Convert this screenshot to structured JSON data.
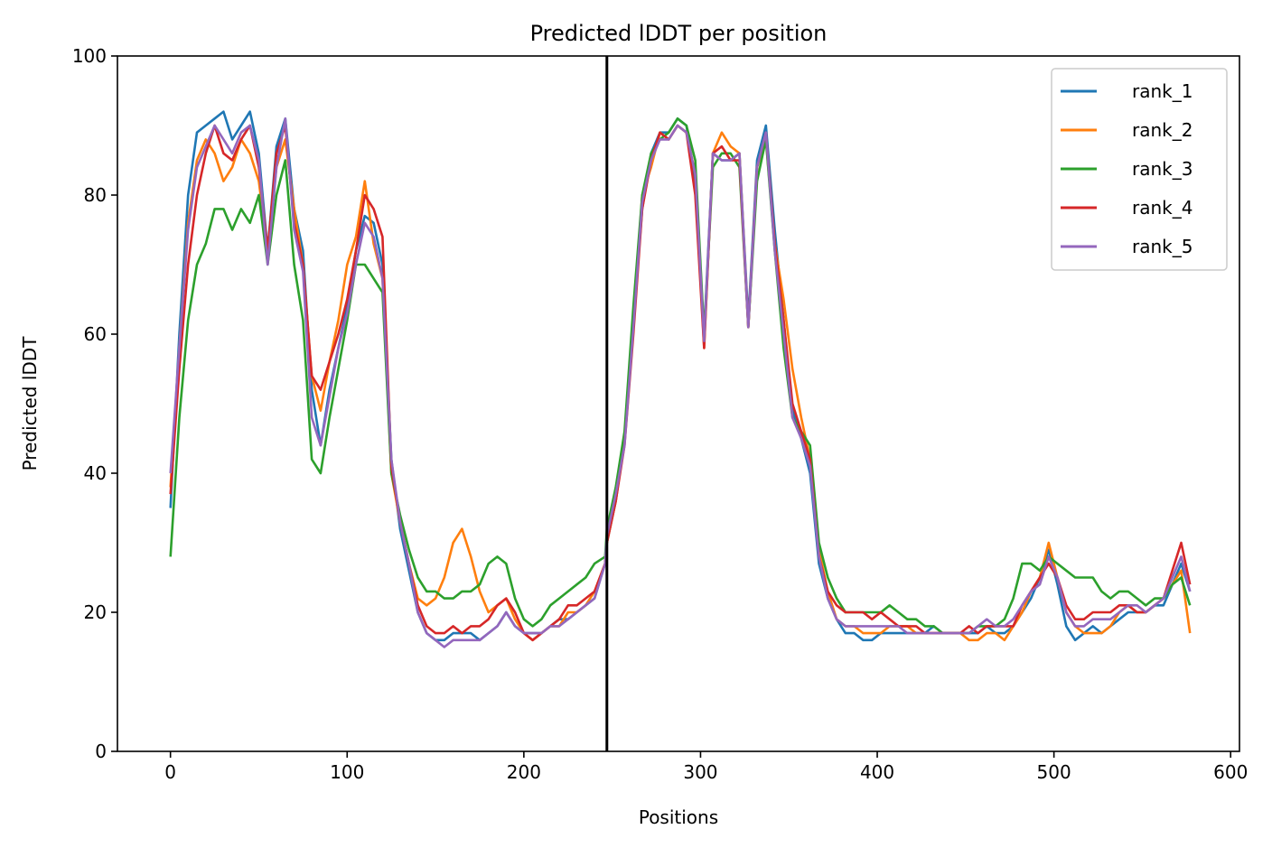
{
  "chart_data": {
    "type": "line",
    "title": "Predicted lDDT per position",
    "xlabel": "Positions",
    "ylabel": "Predicted lDDT",
    "xlim": [
      -30,
      605
    ],
    "ylim": [
      0,
      100
    ],
    "xticks": [
      0,
      100,
      200,
      300,
      400,
      500,
      600
    ],
    "yticks": [
      0,
      20,
      40,
      60,
      80,
      100
    ],
    "grid": false,
    "legend_position": "top-right",
    "chain_break": 247,
    "chain_break_color": "#000000",
    "x": [
      0,
      5,
      10,
      15,
      20,
      25,
      30,
      35,
      40,
      45,
      50,
      55,
      60,
      65,
      70,
      75,
      80,
      85,
      90,
      95,
      100,
      105,
      110,
      115,
      120,
      125,
      130,
      135,
      140,
      145,
      150,
      155,
      160,
      165,
      170,
      175,
      180,
      185,
      190,
      195,
      200,
      205,
      210,
      215,
      220,
      225,
      230,
      235,
      240,
      246,
      247,
      252,
      257,
      262,
      267,
      272,
      277,
      282,
      287,
      292,
      297,
      302,
      307,
      312,
      317,
      322,
      327,
      332,
      337,
      342,
      347,
      352,
      357,
      362,
      367,
      372,
      377,
      382,
      387,
      392,
      397,
      402,
      407,
      412,
      417,
      422,
      427,
      432,
      437,
      442,
      447,
      452,
      457,
      462,
      467,
      472,
      477,
      482,
      487,
      492,
      497,
      502,
      507,
      512,
      517,
      522,
      527,
      532,
      537,
      542,
      547,
      552,
      557,
      562,
      567,
      572,
      577
    ],
    "series": [
      {
        "name": "rank_1",
        "color": "#1f77b4",
        "values": [
          35,
          60,
          80,
          89,
          90,
          91,
          92,
          88,
          90,
          92,
          86,
          72,
          87,
          91,
          78,
          72,
          52,
          44,
          52,
          58,
          64,
          72,
          77,
          76,
          70,
          42,
          32,
          26,
          20,
          17,
          16,
          16,
          17,
          17,
          17,
          16,
          17,
          18,
          20,
          18,
          17,
          17,
          17,
          18,
          19,
          19,
          20,
          21,
          22,
          27,
          30,
          36,
          45,
          62,
          78,
          86,
          89,
          89,
          91,
          90,
          82,
          60,
          86,
          85,
          85,
          86,
          62,
          85,
          90,
          75,
          62,
          49,
          45,
          40,
          27,
          22,
          19,
          17,
          17,
          16,
          16,
          17,
          17,
          17,
          17,
          17,
          17,
          18,
          17,
          17,
          17,
          17,
          17,
          18,
          17,
          17,
          18,
          20,
          22,
          25,
          29,
          24,
          18,
          16,
          17,
          18,
          17,
          18,
          19,
          20,
          20,
          20,
          21,
          21,
          24,
          27,
          23
        ]
      },
      {
        "name": "rank_2",
        "color": "#ff7f0e",
        "values": [
          38,
          58,
          76,
          85,
          88,
          86,
          82,
          84,
          88,
          86,
          82,
          72,
          84,
          88,
          78,
          70,
          54,
          49,
          56,
          62,
          70,
          74,
          82,
          73,
          68,
          40,
          33,
          27,
          22,
          21,
          22,
          25,
          30,
          32,
          28,
          23,
          20,
          21,
          22,
          19,
          17,
          16,
          17,
          18,
          18,
          20,
          20,
          21,
          23,
          27,
          30,
          36,
          45,
          62,
          80,
          84,
          89,
          88,
          90,
          89,
          83,
          58,
          86,
          89,
          87,
          86,
          61,
          84,
          88,
          73,
          65,
          55,
          48,
          42,
          29,
          23,
          19,
          18,
          18,
          17,
          17,
          17,
          18,
          18,
          18,
          17,
          17,
          17,
          17,
          17,
          17,
          16,
          16,
          17,
          17,
          16,
          18,
          20,
          23,
          25,
          30,
          25,
          20,
          18,
          17,
          17,
          17,
          18,
          20,
          21,
          20,
          20,
          21,
          22,
          24,
          26,
          17
        ]
      },
      {
        "name": "rank_3",
        "color": "#2ca02c",
        "values": [
          28,
          48,
          62,
          70,
          73,
          78,
          78,
          75,
          78,
          76,
          80,
          70,
          80,
          85,
          70,
          62,
          42,
          40,
          48,
          55,
          62,
          70,
          70,
          68,
          66,
          40,
          34,
          29,
          25,
          23,
          23,
          22,
          22,
          23,
          23,
          24,
          27,
          28,
          27,
          22,
          19,
          18,
          19,
          21,
          22,
          23,
          24,
          25,
          27,
          28,
          32,
          38,
          46,
          64,
          80,
          86,
          88,
          89,
          91,
          90,
          85,
          60,
          84,
          86,
          86,
          84,
          61,
          82,
          88,
          72,
          58,
          48,
          46,
          44,
          30,
          25,
          22,
          20,
          20,
          20,
          20,
          20,
          21,
          20,
          19,
          19,
          18,
          18,
          17,
          17,
          17,
          17,
          18,
          18,
          18,
          19,
          22,
          27,
          27,
          26,
          28,
          27,
          26,
          25,
          25,
          25,
          23,
          22,
          23,
          23,
          22,
          21,
          22,
          22,
          24,
          25,
          21
        ]
      },
      {
        "name": "rank_4",
        "color": "#d62728",
        "values": [
          37,
          55,
          70,
          80,
          86,
          90,
          86,
          85,
          88,
          90,
          84,
          72,
          86,
          90,
          76,
          70,
          54,
          52,
          56,
          60,
          65,
          72,
          80,
          78,
          74,
          41,
          33,
          27,
          21,
          18,
          17,
          17,
          18,
          17,
          18,
          18,
          19,
          21,
          22,
          20,
          17,
          16,
          17,
          18,
          19,
          21,
          21,
          22,
          23,
          27,
          30,
          36,
          44,
          60,
          78,
          85,
          89,
          88,
          90,
          89,
          80,
          58,
          86,
          87,
          85,
          85,
          61,
          84,
          89,
          73,
          62,
          50,
          46,
          42,
          28,
          23,
          21,
          20,
          20,
          20,
          19,
          20,
          19,
          18,
          18,
          18,
          17,
          17,
          17,
          17,
          17,
          18,
          17,
          18,
          18,
          18,
          18,
          21,
          23,
          25,
          27,
          25,
          21,
          19,
          19,
          20,
          20,
          20,
          21,
          21,
          20,
          20,
          21,
          22,
          26,
          30,
          24
        ]
      },
      {
        "name": "rank_5",
        "color": "#9467bd",
        "values": [
          40,
          58,
          75,
          84,
          87,
          90,
          88,
          86,
          89,
          90,
          85,
          70,
          84,
          91,
          75,
          69,
          48,
          44,
          51,
          58,
          63,
          70,
          76,
          74,
          68,
          42,
          33,
          27,
          20,
          17,
          16,
          15,
          16,
          16,
          16,
          16,
          17,
          18,
          20,
          18,
          17,
          17,
          17,
          18,
          18,
          19,
          20,
          21,
          22,
          27,
          31,
          37,
          44,
          61,
          79,
          85,
          88,
          88,
          90,
          89,
          83,
          59,
          86,
          85,
          85,
          86,
          61,
          84,
          89,
          72,
          60,
          48,
          45,
          41,
          28,
          22,
          19,
          18,
          18,
          18,
          18,
          18,
          18,
          18,
          17,
          17,
          17,
          17,
          17,
          17,
          17,
          17,
          18,
          19,
          18,
          18,
          19,
          21,
          23,
          24,
          28,
          25,
          20,
          18,
          18,
          19,
          19,
          19,
          20,
          21,
          21,
          20,
          21,
          22,
          25,
          28,
          23
        ]
      }
    ]
  }
}
